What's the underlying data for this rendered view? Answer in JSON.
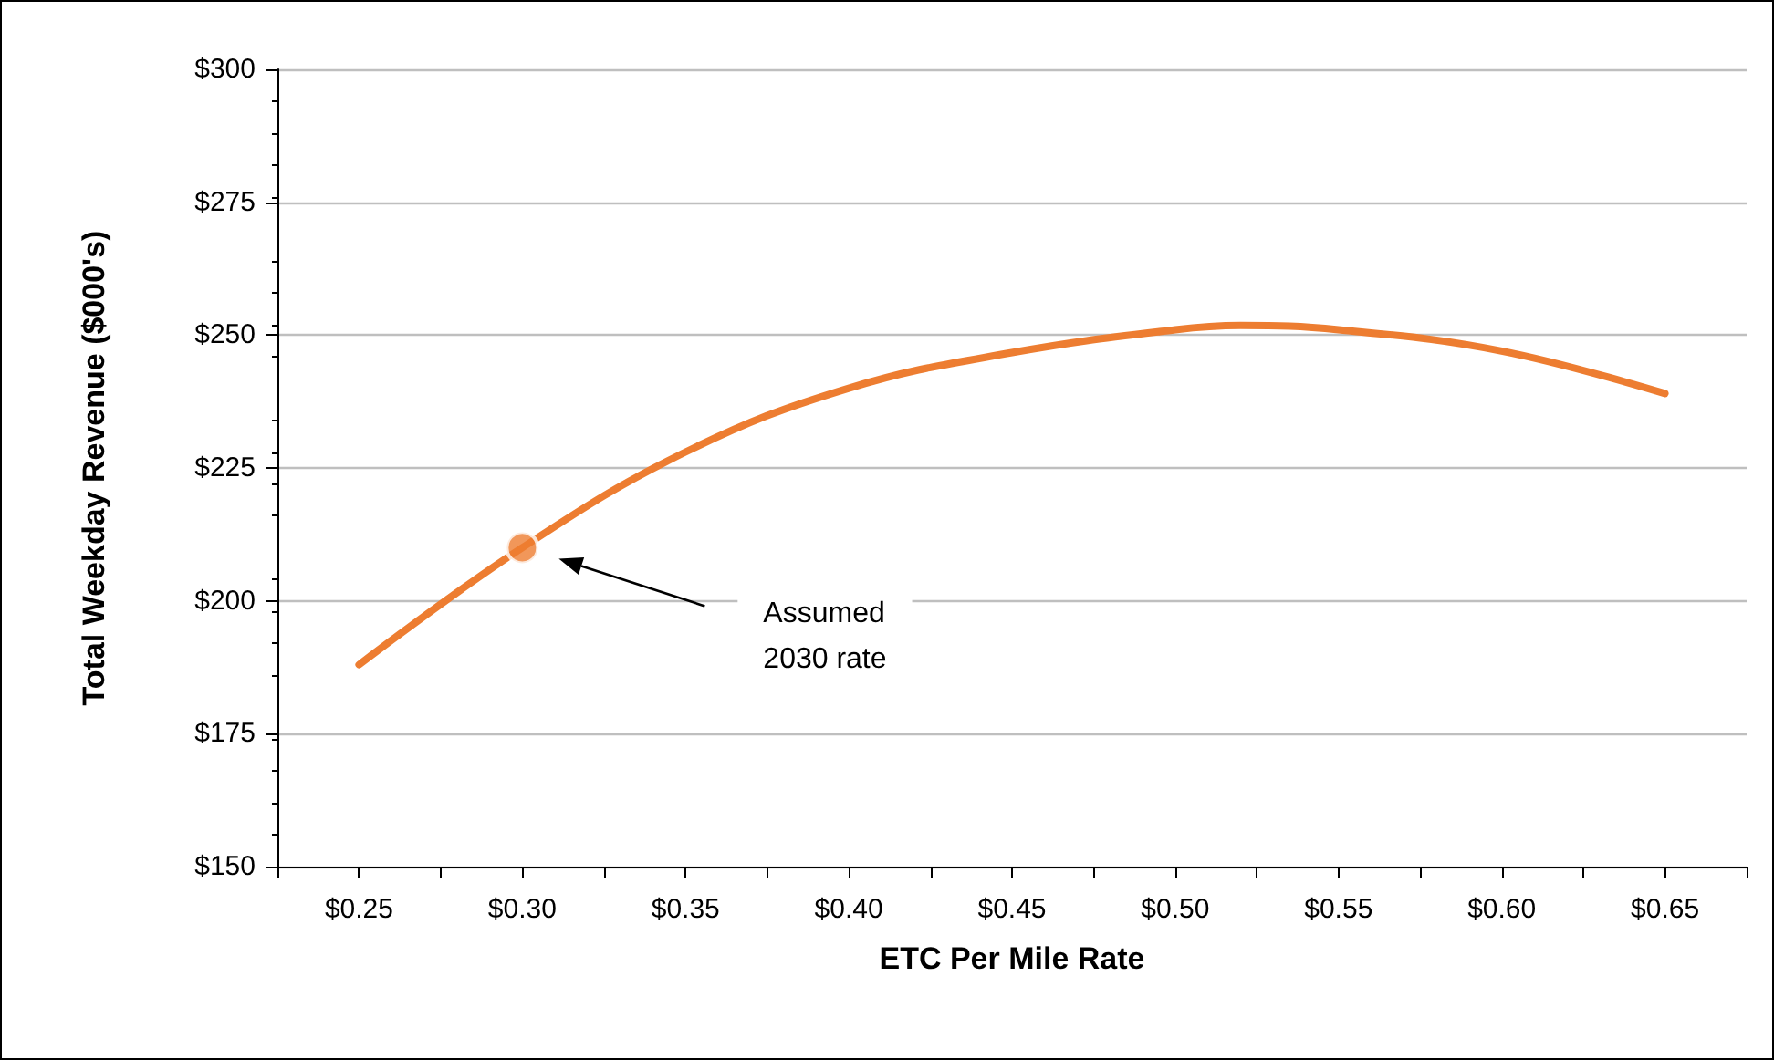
{
  "chart_data": {
    "type": "line",
    "xlabel": "ETC Per Mile Rate",
    "ylabel": "Total Weekday Revenue ($000's)",
    "xlim": [
      0.225,
      0.675
    ],
    "xticks": [
      {
        "value": 0.225,
        "label": null
      },
      {
        "value": 0.25,
        "label": "$0.25"
      },
      {
        "value": 0.275,
        "label": null
      },
      {
        "value": 0.3,
        "label": "$0.30"
      },
      {
        "value": 0.325,
        "label": null
      },
      {
        "value": 0.35,
        "label": "$0.35"
      },
      {
        "value": 0.375,
        "label": null
      },
      {
        "value": 0.4,
        "label": "$0.40"
      },
      {
        "value": 0.425,
        "label": null
      },
      {
        "value": 0.45,
        "label": "$0.45"
      },
      {
        "value": 0.475,
        "label": null
      },
      {
        "value": 0.5,
        "label": "$0.50"
      },
      {
        "value": 0.525,
        "label": null
      },
      {
        "value": 0.55,
        "label": "$0.55"
      },
      {
        "value": 0.575,
        "label": null
      },
      {
        "value": 0.6,
        "label": "$0.60"
      },
      {
        "value": 0.625,
        "label": null
      },
      {
        "value": 0.65,
        "label": "$0.65"
      },
      {
        "value": 0.675,
        "label": null
      }
    ],
    "ylim": [
      150,
      300
    ],
    "yticks": [
      {
        "value": 150,
        "label": "$150"
      },
      {
        "value": 175,
        "label": "$175"
      },
      {
        "value": 200,
        "label": "$200"
      },
      {
        "value": 225,
        "label": "$225"
      },
      {
        "value": 250,
        "label": "$250"
      },
      {
        "value": 275,
        "label": "$275"
      },
      {
        "value": 300,
        "label": "$300"
      }
    ],
    "grid": "y",
    "series": [
      {
        "color": "#ed7d31",
        "marker": "none",
        "line_style": "solid",
        "x": [
          0.25,
          0.3,
          0.35,
          0.4,
          0.45,
          0.5,
          0.52,
          0.55,
          0.6,
          0.65
        ],
        "values": [
          188,
          210,
          228,
          240,
          246.7,
          251,
          251.8,
          251,
          247,
          239
        ]
      },
      {
        "type": "scatter",
        "color": "#ed7d31",
        "marker": "circle",
        "x": [
          0.3
        ],
        "values": [
          210
        ]
      }
    ],
    "annotations": [
      "Assumed\n2030 rate"
    ]
  }
}
